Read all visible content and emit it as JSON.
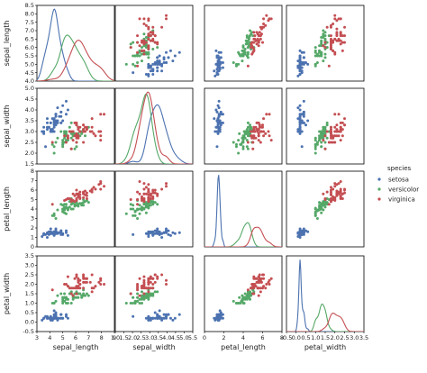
{
  "chart_data": {
    "type": "pairplot",
    "variables": [
      "sepal_length",
      "sepal_width",
      "petal_length",
      "petal_width"
    ],
    "axis_labels": [
      "sepal_length",
      "sepal_width",
      "petal_length",
      "petal_width"
    ],
    "limits": {
      "sepal_length": [
        4.0,
        8.5
      ],
      "sepal_width": [
        1.5,
        5.0
      ],
      "petal_length": [
        0,
        8
      ],
      "petal_width": [
        -0.5,
        3.5
      ]
    },
    "x_ticks": {
      "sepal_length": [
        "3",
        "4",
        "5",
        "6",
        "7",
        "8",
        "9"
      ],
      "sepal_width": [
        "1.0",
        "1.5",
        "2.0",
        "2.5",
        "3.0",
        "3.5",
        "4.0",
        "4.5",
        "5.0",
        "5.5"
      ],
      "petal_length": [
        "0",
        "2",
        "4",
        "6",
        "8"
      ],
      "petal_width": [
        "-0.5",
        "0.0",
        "0.5",
        "1.0",
        "1.5",
        "2.0",
        "2.5",
        "3.0",
        "3.5"
      ]
    },
    "y_ticks": {
      "sepal_length": [
        "4.0",
        "4.5",
        "5.0",
        "5.5",
        "6.0",
        "6.5",
        "7.0",
        "7.5",
        "8.0",
        "8.5"
      ],
      "sepal_width": [
        "1.5",
        "2.0",
        "2.5",
        "3.0",
        "3.5",
        "4.0",
        "4.5",
        "5.0"
      ],
      "petal_length": [
        "0",
        "1",
        "2",
        "3",
        "4",
        "5",
        "6",
        "7",
        "8"
      ],
      "petal_width": [
        "-0.5",
        "0.0",
        "0.5",
        "1.0",
        "1.5",
        "2.0",
        "2.5",
        "3.0",
        "3.5"
      ]
    },
    "legend": {
      "title": "species",
      "placement": "right",
      "entries": [
        {
          "name": "setosa",
          "color": "#4c72b0"
        },
        {
          "name": "versicolor",
          "color": "#55a868"
        },
        {
          "name": "virginica",
          "color": "#c44e52"
        }
      ]
    },
    "species": {
      "setosa": {
        "sepal_length": [
          5.1,
          4.9,
          4.7,
          4.6,
          5.0,
          5.4,
          4.6,
          5.0,
          4.4,
          4.9,
          5.4,
          4.8,
          4.8,
          4.3,
          5.8,
          5.7,
          5.4,
          5.1,
          5.7,
          5.1,
          5.4,
          5.1,
          4.6,
          5.1,
          4.8,
          5.0,
          5.0,
          5.2,
          5.2,
          4.7,
          4.8,
          5.4,
          5.2,
          5.5,
          4.9,
          5.0,
          5.5,
          4.9,
          4.4,
          5.1,
          5.0,
          4.5,
          4.4,
          5.0,
          5.1,
          4.8,
          5.1,
          4.6,
          5.3,
          5.0
        ],
        "sepal_width": [
          3.5,
          3.0,
          3.2,
          3.1,
          3.6,
          3.9,
          3.4,
          3.4,
          2.9,
          3.1,
          3.7,
          3.4,
          3.0,
          3.0,
          4.0,
          4.4,
          3.9,
          3.5,
          3.8,
          3.8,
          3.4,
          3.7,
          3.6,
          3.3,
          3.4,
          3.0,
          3.4,
          3.5,
          3.4,
          3.2,
          3.1,
          3.4,
          4.1,
          4.2,
          3.1,
          3.2,
          3.5,
          3.6,
          3.0,
          3.4,
          3.5,
          2.3,
          3.2,
          3.5,
          3.8,
          3.0,
          3.8,
          3.2,
          3.7,
          3.3
        ],
        "petal_length": [
          1.4,
          1.4,
          1.3,
          1.5,
          1.4,
          1.7,
          1.4,
          1.5,
          1.4,
          1.5,
          1.5,
          1.6,
          1.4,
          1.1,
          1.2,
          1.5,
          1.3,
          1.4,
          1.7,
          1.5,
          1.7,
          1.5,
          1.0,
          1.7,
          1.9,
          1.6,
          1.6,
          1.5,
          1.4,
          1.6,
          1.6,
          1.5,
          1.5,
          1.4,
          1.5,
          1.2,
          1.3,
          1.4,
          1.3,
          1.5,
          1.3,
          1.3,
          1.3,
          1.6,
          1.9,
          1.4,
          1.6,
          1.4,
          1.5,
          1.4
        ],
        "petal_width": [
          0.2,
          0.2,
          0.2,
          0.2,
          0.2,
          0.4,
          0.3,
          0.2,
          0.2,
          0.1,
          0.2,
          0.2,
          0.1,
          0.1,
          0.2,
          0.4,
          0.4,
          0.3,
          0.3,
          0.3,
          0.2,
          0.4,
          0.2,
          0.5,
          0.2,
          0.2,
          0.4,
          0.2,
          0.2,
          0.2,
          0.2,
          0.4,
          0.1,
          0.2,
          0.2,
          0.2,
          0.2,
          0.1,
          0.2,
          0.2,
          0.3,
          0.3,
          0.2,
          0.6,
          0.4,
          0.3,
          0.2,
          0.2,
          0.2,
          0.2
        ]
      },
      "versicolor": {
        "sepal_length": [
          7.0,
          6.4,
          6.9,
          5.5,
          6.5,
          5.7,
          6.3,
          4.9,
          6.6,
          5.2,
          5.0,
          5.9,
          6.0,
          6.1,
          5.6,
          6.7,
          5.6,
          5.8,
          6.2,
          5.6,
          5.9,
          6.1,
          6.3,
          6.1,
          6.4,
          6.6,
          6.8,
          6.7,
          6.0,
          5.7,
          5.5,
          5.5,
          5.8,
          6.0,
          5.4,
          6.0,
          6.7,
          6.3,
          5.6,
          5.5,
          5.5,
          6.1,
          5.8,
          5.0,
          5.6,
          5.7,
          5.7,
          6.2,
          5.1,
          5.7
        ],
        "sepal_width": [
          3.2,
          3.2,
          3.1,
          2.3,
          2.8,
          2.8,
          3.3,
          2.4,
          2.9,
          2.7,
          2.0,
          3.0,
          2.2,
          2.9,
          2.9,
          3.1,
          3.0,
          2.7,
          2.2,
          2.5,
          3.2,
          2.8,
          2.5,
          2.8,
          2.9,
          3.0,
          2.8,
          3.0,
          2.9,
          2.6,
          2.4,
          2.4,
          2.7,
          2.7,
          3.0,
          3.4,
          3.1,
          2.3,
          3.0,
          2.5,
          2.6,
          3.0,
          2.6,
          2.3,
          2.7,
          3.0,
          2.9,
          2.9,
          2.5,
          2.8
        ],
        "petal_length": [
          4.7,
          4.5,
          4.9,
          4.0,
          4.6,
          4.5,
          4.7,
          3.3,
          4.6,
          3.9,
          3.5,
          4.2,
          4.0,
          4.7,
          3.6,
          4.4,
          4.5,
          4.1,
          4.5,
          3.9,
          4.8,
          4.0,
          4.9,
          4.7,
          4.3,
          4.4,
          4.8,
          5.0,
          4.5,
          3.5,
          3.8,
          3.7,
          3.9,
          5.1,
          4.5,
          4.5,
          4.7,
          4.4,
          4.1,
          4.0,
          4.4,
          4.6,
          4.0,
          3.3,
          4.2,
          4.2,
          4.2,
          4.3,
          3.0,
          4.1
        ],
        "petal_width": [
          1.4,
          1.5,
          1.5,
          1.3,
          1.5,
          1.3,
          1.6,
          1.0,
          1.3,
          1.4,
          1.0,
          1.5,
          1.0,
          1.4,
          1.3,
          1.4,
          1.5,
          1.0,
          1.5,
          1.1,
          1.8,
          1.3,
          1.5,
          1.2,
          1.3,
          1.4,
          1.4,
          1.7,
          1.5,
          1.0,
          1.1,
          1.0,
          1.2,
          1.6,
          1.5,
          1.6,
          1.5,
          1.3,
          1.3,
          1.3,
          1.2,
          1.4,
          1.2,
          1.0,
          1.3,
          1.2,
          1.3,
          1.3,
          1.1,
          1.3
        ]
      },
      "virginica": {
        "sepal_length": [
          6.3,
          5.8,
          7.1,
          6.3,
          6.5,
          7.6,
          4.9,
          7.3,
          6.7,
          7.2,
          6.5,
          6.4,
          6.8,
          5.7,
          5.8,
          6.4,
          6.5,
          7.7,
          7.7,
          6.0,
          6.9,
          5.6,
          7.7,
          6.3,
          6.7,
          7.2,
          6.2,
          6.1,
          6.4,
          7.2,
          7.4,
          7.9,
          6.4,
          6.3,
          6.1,
          7.7,
          6.3,
          6.4,
          6.0,
          6.9,
          6.7,
          6.9,
          5.8,
          6.8,
          6.7,
          6.7,
          6.3,
          6.5,
          6.2,
          5.9
        ],
        "sepal_width": [
          3.3,
          2.7,
          3.0,
          2.9,
          3.0,
          3.0,
          2.5,
          2.9,
          2.5,
          3.6,
          3.2,
          2.7,
          3.0,
          2.5,
          2.8,
          3.2,
          3.0,
          3.8,
          2.6,
          2.2,
          3.2,
          2.8,
          2.8,
          2.7,
          3.3,
          3.2,
          2.8,
          3.0,
          2.8,
          3.0,
          2.8,
          3.8,
          2.8,
          2.8,
          2.6,
          3.0,
          3.4,
          3.1,
          3.0,
          3.1,
          3.1,
          3.1,
          2.7,
          3.2,
          3.3,
          3.0,
          2.5,
          3.0,
          3.4,
          3.0
        ],
        "petal_length": [
          6.0,
          5.1,
          5.9,
          5.6,
          5.8,
          6.6,
          4.5,
          6.3,
          5.8,
          6.1,
          5.1,
          5.3,
          5.5,
          5.0,
          5.1,
          5.3,
          5.5,
          6.7,
          6.9,
          5.0,
          5.7,
          4.9,
          6.7,
          4.9,
          5.7,
          6.0,
          4.8,
          4.9,
          5.6,
          5.8,
          6.1,
          6.4,
          5.6,
          5.1,
          5.6,
          6.1,
          5.6,
          5.5,
          4.8,
          5.4,
          5.6,
          5.1,
          5.1,
          5.9,
          5.7,
          5.2,
          5.0,
          5.2,
          5.4,
          5.1
        ],
        "petal_width": [
          2.5,
          1.9,
          2.1,
          1.8,
          2.2,
          2.1,
          1.7,
          1.8,
          1.8,
          2.5,
          2.0,
          1.9,
          2.1,
          2.0,
          2.4,
          2.3,
          1.8,
          2.2,
          2.3,
          1.5,
          2.3,
          2.0,
          2.0,
          1.8,
          2.1,
          1.8,
          1.8,
          1.8,
          2.1,
          1.6,
          1.9,
          2.0,
          2.2,
          1.5,
          1.4,
          2.3,
          2.4,
          1.8,
          1.8,
          2.1,
          2.4,
          2.3,
          1.9,
          2.3,
          2.5,
          2.3,
          1.9,
          2.0,
          2.3,
          1.8
        ]
      }
    },
    "diagonal": "kde",
    "offdiagonal": "scatter",
    "grid": false
  }
}
